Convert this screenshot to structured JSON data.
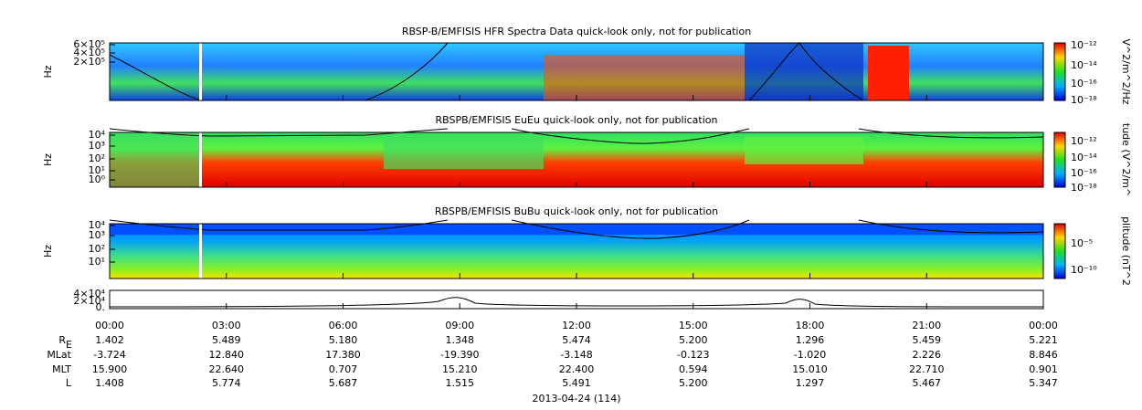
{
  "panels": [
    {
      "title": "RBSP-B/EMFISIS  HFR Spectra Data quick-look only, not for publication",
      "ylabel": "Hz",
      "yticks": [
        "6×10⁵",
        "4×10⁵",
        "2×10⁵"
      ],
      "cbar_label": "V^2/m^2/Hz",
      "cbar_ticks": [
        "10⁻¹²",
        "10⁻¹⁴",
        "10⁻¹⁶",
        "10⁻¹⁸"
      ]
    },
    {
      "title": "RBSPB/EMFISIS  EuEu quick-look only, not for publication",
      "ylabel": "Hz",
      "yticks": [
        "10⁴",
        "10³",
        "10²",
        "10¹",
        "10⁰"
      ],
      "cbar_label": "tude (V^2/m^",
      "cbar_ticks": [
        "10⁻¹²",
        "10⁻¹⁴",
        "10⁻¹⁶",
        "10⁻¹⁸"
      ]
    },
    {
      "title": "RBSPB/EMFISIS  BuBu quick-look only, not for publication",
      "ylabel": "Hz",
      "yticks": [
        "10⁴",
        "10³",
        "10²",
        "10¹"
      ],
      "cbar_label": "plitude (nT^2",
      "cbar_ticks": [
        "10⁻⁵",
        "10⁻¹⁰"
      ]
    }
  ],
  "line_panel": {
    "yticks": [
      "4×10⁴",
      "2×10⁴",
      "0."
    ]
  },
  "xticks": [
    "00:00",
    "03:00",
    "06:00",
    "09:00",
    "12:00",
    "15:00",
    "18:00",
    "21:00",
    "00:00"
  ],
  "ephemeris": [
    {
      "label": "R",
      "sub": "E",
      "values": [
        "1.402",
        "5.489",
        "5.180",
        "1.348",
        "5.474",
        "5.200",
        "1.296",
        "5.459",
        "5.221"
      ]
    },
    {
      "label": "MLat",
      "values": [
        "-3.724",
        "12.840",
        "17.380",
        "-19.390",
        "-3.148",
        "-0.123",
        "-1.020",
        "2.226",
        "8.846"
      ]
    },
    {
      "label": "MLT",
      "values": [
        "15.900",
        "22.640",
        "0.707",
        "15.210",
        "22.400",
        "0.594",
        "15.010",
        "22.710",
        "0.901"
      ]
    },
    {
      "label": "L",
      "values": [
        "1.408",
        "5.774",
        "5.687",
        "1.515",
        "5.491",
        "5.200",
        "1.297",
        "5.467",
        "5.347"
      ]
    }
  ],
  "date": "2013-04-24 (114)"
}
